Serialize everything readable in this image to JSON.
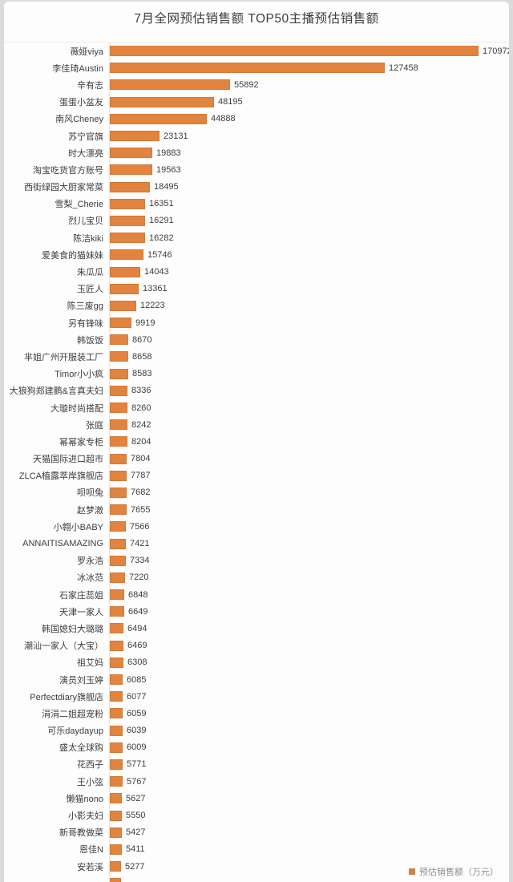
{
  "page": {
    "title": "7月全网预估销售额  TOP50主播预估销售额",
    "legend_label": "预估销售额（万元）"
  },
  "chart_data": {
    "type": "bar",
    "orientation": "horizontal",
    "title": "7月全网预估销售额  TOP50主播预估销售额",
    "value_unit": "万元",
    "bar_color": "#e2833f",
    "legend": [
      "预估销售额（万元）"
    ],
    "legend_position": "bottom-right",
    "grid": false,
    "xlim": [
      0,
      178000
    ],
    "note": "TOP50 list; 50th bar clipped at image bottom edge",
    "categories": [
      "薇娅viya",
      "李佳琦Austin",
      "辛有志",
      "蛋蛋小盆友",
      "南风Cheney",
      "苏宁官旗",
      "时大漂亮",
      "淘宝吃货官方账号",
      "西街绿园大厨家常菜",
      "雪梨_Cherie",
      "烈儿宝贝",
      "陈洁kiki",
      "爱美食的猫妹妹",
      "朱瓜瓜",
      "玉匠人",
      "陈三废gg",
      "另有锋味",
      "韩饭饭",
      "芈姐广州开服装工厂",
      "Timor小小疯",
      "大狼狗郑建鹏&言真夫妇",
      "大璇时尚搭配",
      "张庭",
      "幂幂家专柜",
      "天猫国际进口超市",
      "ZLCA植露萃岸旗舰店",
      "呗呗兔",
      "赵梦澈",
      "小翱小BABY",
      "ANNAITISAMAZING",
      "罗永浩",
      "冰冰范",
      "石家庄蕊姐",
      "天津一家人",
      "韩国媳妇大璐璐",
      "潮汕一家人（大宝）",
      "祖艾妈",
      "演员刘玉婷",
      "Perfectdiary旗舰店",
      "涓涓二姐超宠粉",
      "可乐daydayup",
      "盛太全球购",
      "花西子",
      "王小弦",
      "懒猫nono",
      "小影夫妇",
      "新哥教做菜",
      "恩佳N",
      "安若溪"
    ],
    "values": [
      170972,
      127458,
      55892,
      48195,
      44888,
      23131,
      19883,
      19563,
      18495,
      16351,
      16291,
      16282,
      15746,
      14043,
      13361,
      12223,
      9919,
      8670,
      8658,
      8583,
      8336,
      8260,
      8242,
      8204,
      7804,
      7787,
      7682,
      7655,
      7566,
      7421,
      7334,
      7220,
      6848,
      6649,
      6494,
      6469,
      6308,
      6085,
      6077,
      6059,
      6039,
      6009,
      5771,
      5767,
      5627,
      5550,
      5427,
      5411,
      5277
    ]
  }
}
